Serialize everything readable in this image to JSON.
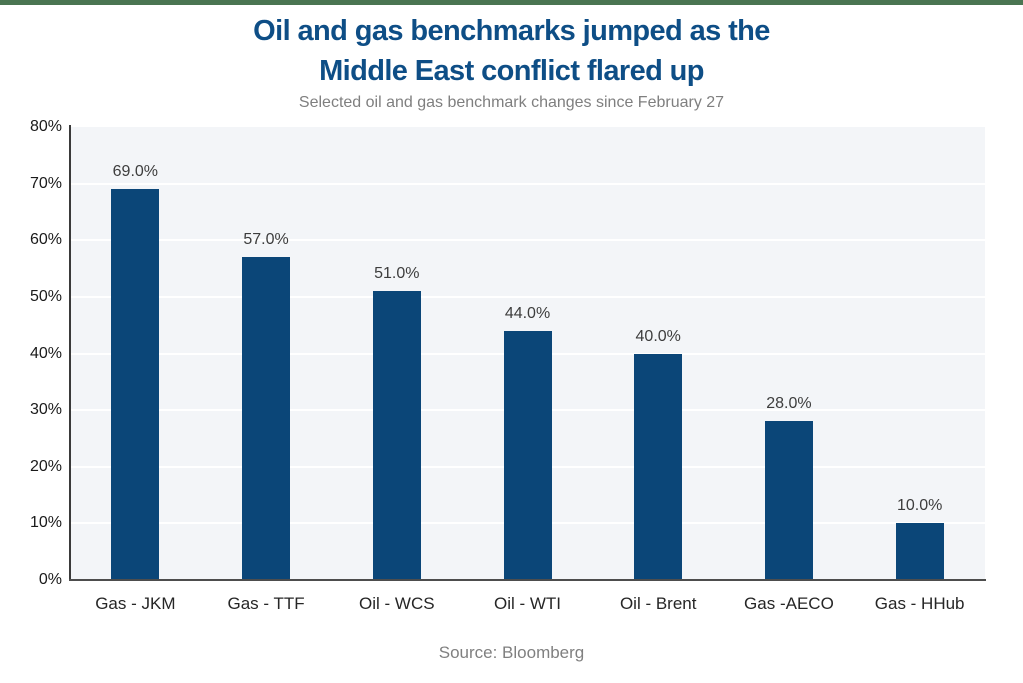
{
  "page": {
    "accent_bar_color": "#4a7552",
    "title_color": "#0e4e86"
  },
  "header": {
    "title_line1": "Oil and gas benchmarks jumped as the",
    "title_line2": "Middle East conflict flared up",
    "subtitle": "Selected oil and gas benchmark changes since February 27"
  },
  "footer": {
    "source": "Source: Bloomberg"
  },
  "chart_data": {
    "type": "bar",
    "title": "Oil and gas benchmarks jumped as the Middle East conflict flared up",
    "subtitle": "Selected oil and gas benchmark changes since February 27",
    "categories": [
      "Gas - JKM",
      "Gas - TTF",
      "Oil - WCS",
      "Oil - WTI",
      "Oil - Brent",
      "Gas -AECO",
      "Gas - HHub"
    ],
    "values": [
      69.0,
      57.0,
      51.0,
      44.0,
      40.0,
      28.0,
      10.0
    ],
    "data_labels": [
      "69.0%",
      "57.0%",
      "51.0%",
      "44.0%",
      "40.0%",
      "28.0%",
      "10.0%"
    ],
    "xlabel": "",
    "ylabel": "",
    "ylim": [
      0,
      80
    ],
    "ytick_step": 10,
    "ytick_labels": [
      "0%",
      "10%",
      "20%",
      "30%",
      "40%",
      "50%",
      "60%",
      "70%",
      "80%"
    ],
    "grid": true,
    "legend": "none",
    "bar_color": "#0b4678",
    "plot_bg_color": "#f3f5f8",
    "gridline_color": "#ffffff",
    "source": "Source: Bloomberg"
  }
}
